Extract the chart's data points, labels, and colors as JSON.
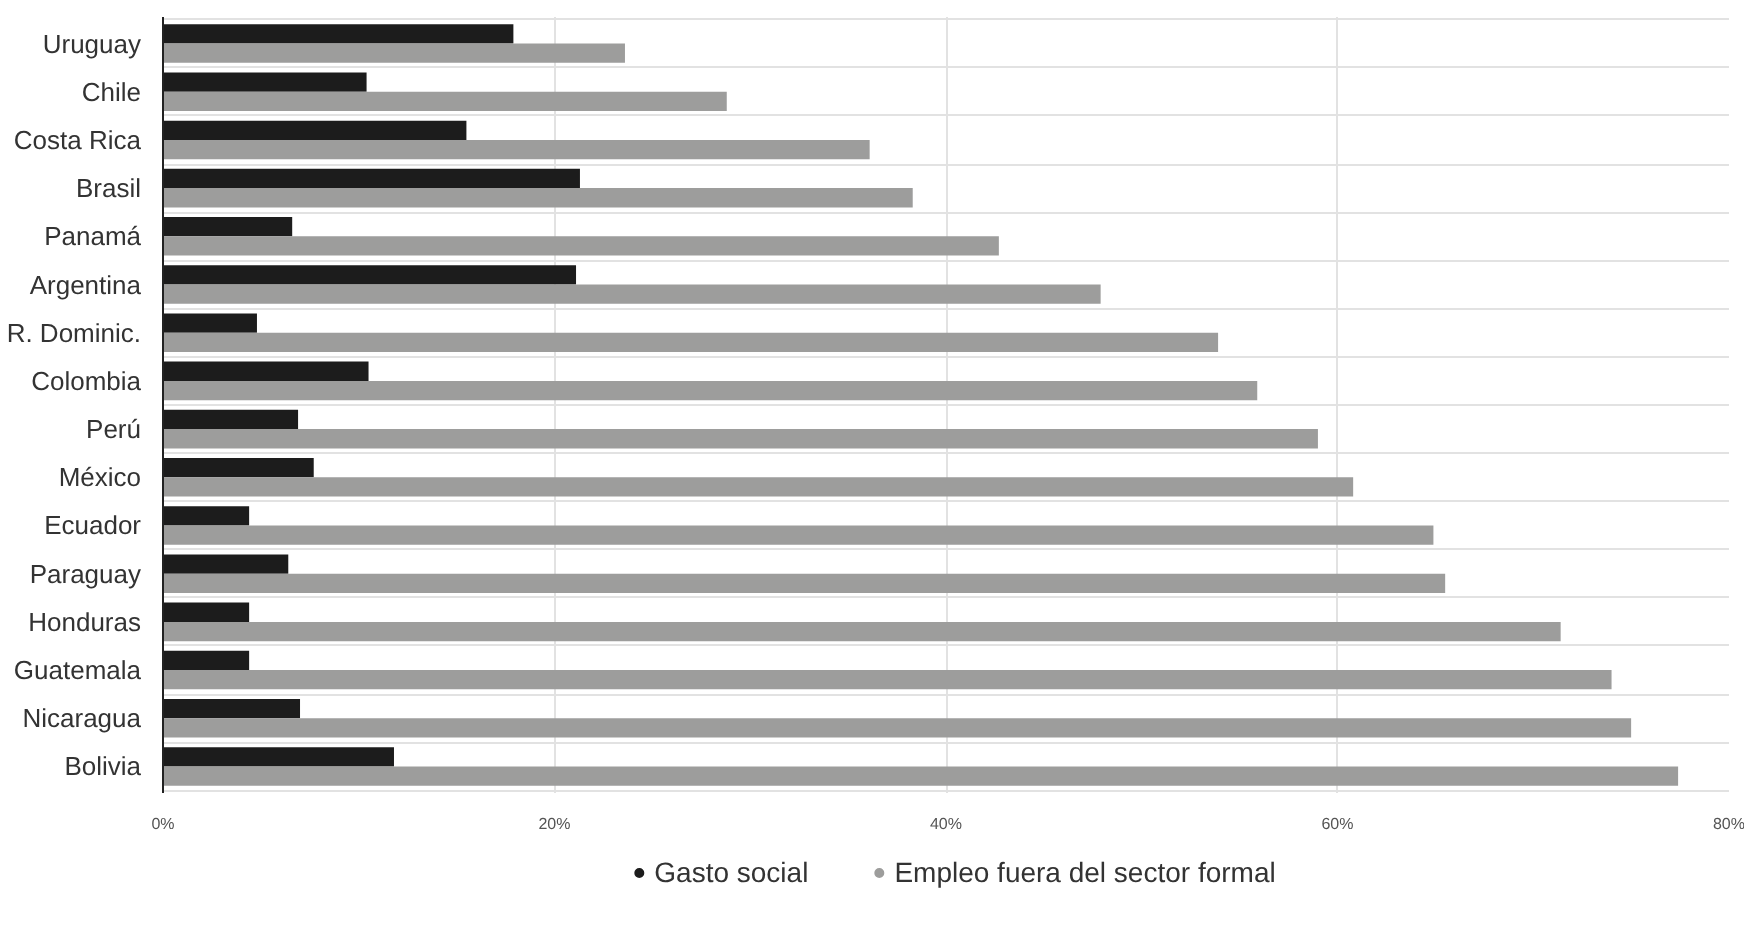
{
  "chart_data": {
    "type": "bar",
    "orientation": "horizontal",
    "categories": [
      "Uruguay",
      "Chile",
      "Costa Rica",
      "Brasil",
      "Panamá",
      "Argentina",
      "R. Dominic.",
      "Colombia",
      "Perú",
      "México",
      "Ecuador",
      "Paraguay",
      "Honduras",
      "Guatemala",
      "Nicaragua",
      "Bolivia"
    ],
    "series": [
      {
        "name": "Gasto social",
        "color": "#1c1c1c",
        "values": [
          17.9,
          10.4,
          15.5,
          21.3,
          6.6,
          21.1,
          4.8,
          10.5,
          6.9,
          7.7,
          4.4,
          6.4,
          4.4,
          4.4,
          7.0,
          11.8
        ]
      },
      {
        "name": "Empleo fuera del sector formal",
        "color": "#9d9d9c",
        "values": [
          23.6,
          28.8,
          36.1,
          38.3,
          42.7,
          47.9,
          53.9,
          55.9,
          59.0,
          60.8,
          64.9,
          65.5,
          71.4,
          74.0,
          75.0,
          77.4
        ]
      }
    ],
    "xlim": [
      0,
      80
    ],
    "xticks": [
      {
        "value": 0,
        "label": "0%"
      },
      {
        "value": 20,
        "label": "20%"
      },
      {
        "value": 40,
        "label": "40%"
      },
      {
        "value": 60,
        "label": "60%"
      },
      {
        "value": 80,
        "label": "80%"
      }
    ],
    "grid": true,
    "legend": "bottom",
    "marker": "circle"
  }
}
